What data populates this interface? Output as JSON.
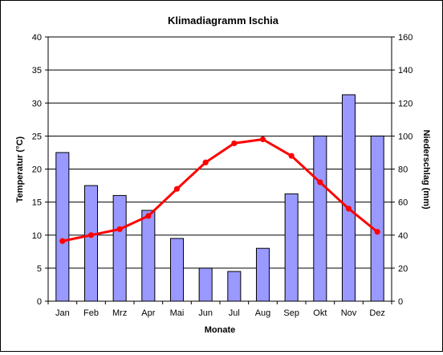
{
  "chart_data": {
    "type": "bar+line",
    "title": "Klimadiagramm Ischia",
    "xlabel": "Monate",
    "ylabel_left": "Temperatur (°C)",
    "ylabel_right": "Niederschlag (mm)",
    "categories": [
      "Jan",
      "Feb",
      "Mrz",
      "Apr",
      "Mai",
      "Jun",
      "Jul",
      "Aug",
      "Sep",
      "Okt",
      "Nov",
      "Dez"
    ],
    "ylim_left": [
      0,
      40
    ],
    "ylim_right": [
      0,
      160
    ],
    "yticks_left": [
      "0",
      "5",
      "10",
      "15",
      "20",
      "25",
      "30",
      "35",
      "40"
    ],
    "yticks_right": [
      "0",
      "20",
      "40",
      "60",
      "80",
      "100",
      "120",
      "140",
      "160"
    ],
    "grid": true,
    "series": [
      {
        "kind": "bar",
        "axis": "right",
        "color": "#9999ff",
        "values": [
          90,
          70,
          64,
          55,
          38,
          20,
          18,
          32,
          65,
          100,
          125,
          100
        ]
      },
      {
        "kind": "line",
        "axis": "left",
        "color": "#ff0000",
        "values": [
          9.1,
          10.0,
          10.9,
          12.9,
          17.0,
          21.0,
          23.9,
          24.5,
          22.0,
          18.0,
          14.0,
          10.5
        ]
      }
    ]
  }
}
